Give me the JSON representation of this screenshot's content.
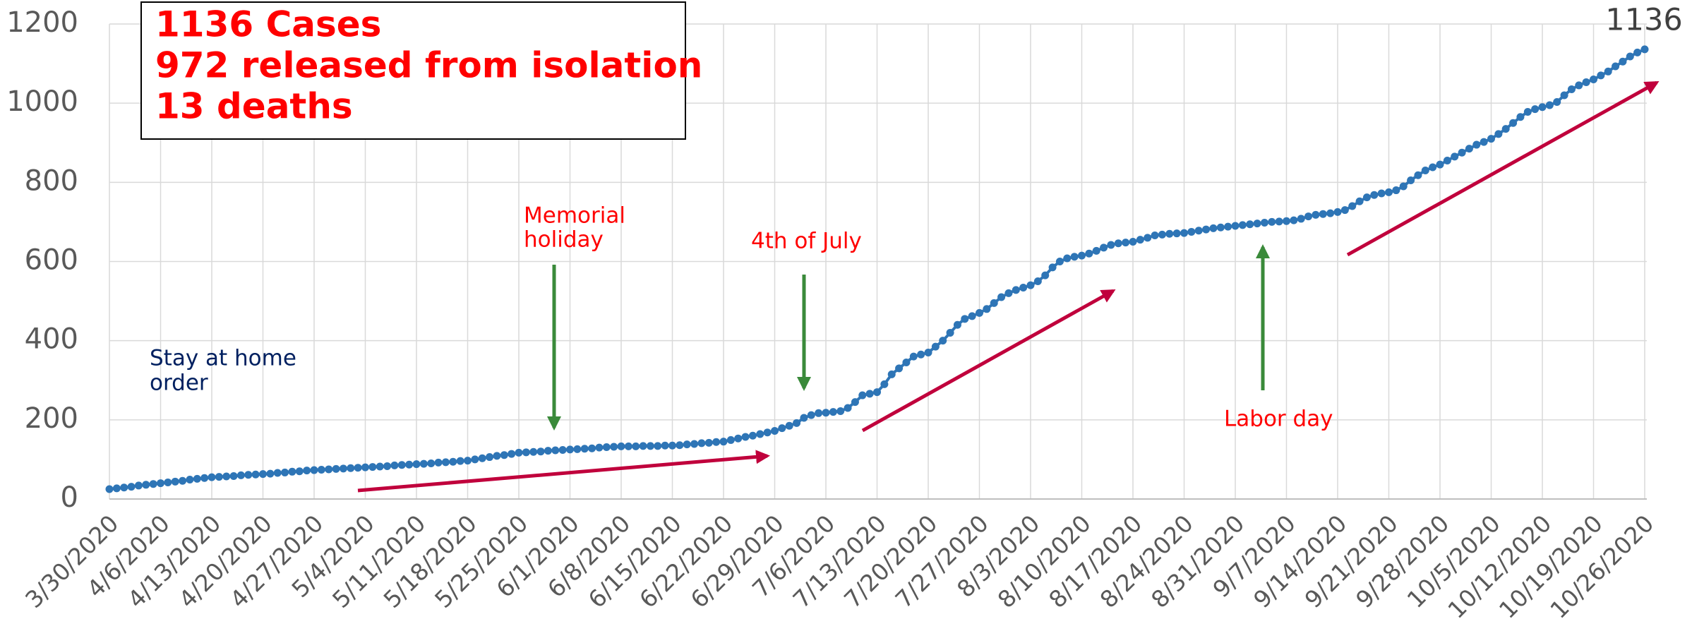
{
  "chart_data": {
    "type": "line",
    "categories": [
      "3/30/2020",
      null,
      null,
      null,
      null,
      null,
      null,
      "4/6/2020",
      null,
      null,
      null,
      null,
      null,
      null,
      "4/13/2020",
      null,
      null,
      null,
      null,
      null,
      null,
      "4/20/2020",
      null,
      null,
      null,
      null,
      null,
      null,
      "4/27/2020",
      null,
      null,
      null,
      null,
      null,
      null,
      "5/4/2020",
      null,
      null,
      null,
      null,
      null,
      null,
      "5/11/2020",
      null,
      null,
      null,
      null,
      null,
      null,
      "5/18/2020",
      null,
      null,
      null,
      null,
      null,
      null,
      "5/25/2020",
      null,
      null,
      null,
      null,
      null,
      null,
      "6/1/2020",
      null,
      null,
      null,
      null,
      null,
      null,
      "6/8/2020",
      null,
      null,
      null,
      null,
      null,
      null,
      "6/15/2020",
      null,
      null,
      null,
      null,
      null,
      null,
      "6/22/2020",
      null,
      null,
      null,
      null,
      null,
      null,
      "6/29/2020",
      null,
      null,
      null,
      null,
      null,
      null,
      "7/6/2020",
      null,
      null,
      null,
      null,
      null,
      null,
      "7/13/2020",
      null,
      null,
      null,
      null,
      null,
      null,
      "7/20/2020",
      null,
      null,
      null,
      null,
      null,
      null,
      "7/27/2020",
      null,
      null,
      null,
      null,
      null,
      null,
      "8/3/2020",
      null,
      null,
      null,
      null,
      null,
      null,
      "8/10/2020",
      null,
      null,
      null,
      null,
      null,
      null,
      "8/17/2020",
      null,
      null,
      null,
      null,
      null,
      null,
      "8/24/2020",
      null,
      null,
      null,
      null,
      null,
      null,
      "8/31/2020",
      null,
      null,
      null,
      null,
      null,
      null,
      "9/7/2020",
      null,
      null,
      null,
      null,
      null,
      null,
      "9/14/2020",
      null,
      null,
      null,
      null,
      null,
      null,
      "9/21/2020",
      null,
      null,
      null,
      null,
      null,
      null,
      "9/28/2020",
      null,
      null,
      null,
      null,
      null,
      null,
      "10/5/2020",
      null,
      null,
      null,
      null,
      null,
      null,
      "10/12/2020",
      null,
      null,
      null,
      null,
      null,
      null,
      "10/19/2020",
      null,
      null,
      null,
      null,
      null,
      null,
      "10/26/2020"
    ],
    "series": [
      {
        "color": "#2e75b6",
        "values": [
          25,
          27,
          29,
          31,
          34,
          36,
          38,
          40,
          42,
          44,
          46,
          49,
          51,
          53,
          55,
          56,
          57,
          58,
          60,
          61,
          62,
          63,
          64,
          66,
          67,
          69,
          70,
          72,
          73,
          74,
          75,
          76,
          77,
          78,
          79,
          80,
          81,
          82,
          83,
          85,
          86,
          87,
          88,
          89,
          90,
          92,
          93,
          94,
          96,
          97,
          100,
          103,
          106,
          109,
          111,
          114,
          117,
          118,
          119,
          120,
          122,
          123,
          124,
          125,
          126,
          127,
          128,
          130,
          131,
          132,
          133,
          133,
          133,
          134,
          134,
          134,
          135,
          135,
          136,
          138,
          139,
          141,
          142,
          144,
          145,
          149,
          153,
          157,
          160,
          164,
          168,
          172,
          179,
          185,
          192,
          205,
          212,
          217,
          218,
          220,
          222,
          230,
          245,
          262,
          266,
          270,
          290,
          315,
          330,
          345,
          360,
          365,
          370,
          385,
          400,
          420,
          440,
          455,
          462,
          470,
          480,
          495,
          510,
          520,
          528,
          534,
          540,
          550,
          565,
          585,
          600,
          608,
          612,
          615,
          620,
          627,
          635,
          642,
          646,
          648,
          650,
          655,
          660,
          666,
          668,
          670,
          671,
          672,
          675,
          678,
          681,
          684,
          686,
          688,
          690,
          692,
          694,
          696,
          698,
          700,
          701,
          702,
          704,
          708,
          714,
          718,
          720,
          722,
          725,
          730,
          740,
          752,
          762,
          768,
          772,
          775,
          780,
          790,
          805,
          818,
          830,
          838,
          845,
          855,
          865,
          875,
          885,
          895,
          902,
          910,
          922,
          935,
          950,
          965,
          978,
          985,
          990,
          995,
          1003,
          1020,
          1035,
          1045,
          1053,
          1060,
          1070,
          1080,
          1093,
          1105,
          1118,
          1128,
          1136
        ]
      }
    ],
    "last_value_label": "1136",
    "ylim": [
      0,
      1200
    ],
    "yticks": [
      0,
      200,
      400,
      600,
      800,
      1000,
      1200
    ],
    "grid": true,
    "summary": [
      "1136 Cases",
      "972 released from isolation",
      "13 deaths"
    ],
    "annotations": [
      "Stay at home",
      "order",
      "Memorial",
      "holiday",
      "4th of July",
      "Labor day"
    ]
  }
}
